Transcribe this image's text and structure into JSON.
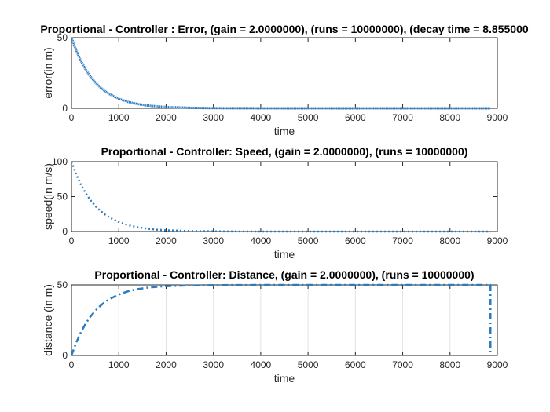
{
  "chart_data": [
    {
      "type": "line",
      "title": "Proportional - Controller : Error, (gain = 2.0000000), (runs = 10000000), (decay time = 8.855000",
      "xlabel": "time",
      "ylabel": "error(in m)",
      "xlim": [
        0,
        9000
      ],
      "ylim": [
        0,
        50
      ],
      "xticks": [
        "0",
        "1000",
        "2000",
        "3000",
        "4000",
        "5000",
        "6000",
        "7000",
        "8000",
        "9000"
      ],
      "yticks": [
        "0",
        "50"
      ],
      "grid": false,
      "line_style": "dotted-dense",
      "color": "#2b7bbf",
      "x": [
        0,
        100,
        200,
        300,
        400,
        500,
        600,
        700,
        800,
        1000,
        1200,
        1400,
        1600,
        1800,
        2000,
        2500,
        3000,
        4000,
        5000,
        6000,
        7000,
        8000,
        8855
      ],
      "y": [
        50,
        40.9,
        33.5,
        27.4,
        22.5,
        18.4,
        15.1,
        12.3,
        10.1,
        6.8,
        4.5,
        3.0,
        2.0,
        1.4,
        0.9,
        0.35,
        0.12,
        0.02,
        0,
        0,
        0,
        0,
        0
      ]
    },
    {
      "type": "line",
      "title": "Proportional - Controller: Speed, (gain = 2.0000000), (runs = 10000000)",
      "xlabel": "time",
      "ylabel": "speed(in m/s)",
      "xlim": [
        0,
        9000
      ],
      "ylim": [
        0,
        100
      ],
      "xticks": [
        "0",
        "1000",
        "2000",
        "3000",
        "4000",
        "5000",
        "6000",
        "7000",
        "8000",
        "9000"
      ],
      "yticks": [
        "0",
        "50",
        "100"
      ],
      "grid": false,
      "line_style": "dotted",
      "color": "#2b7bbf",
      "x": [
        0,
        100,
        200,
        300,
        400,
        500,
        600,
        700,
        800,
        1000,
        1200,
        1400,
        1600,
        1800,
        2000,
        2500,
        3000,
        4000,
        5000,
        6000,
        7000,
        8000,
        8855
      ],
      "y": [
        100,
        81.9,
        67.0,
        54.9,
        44.9,
        36.8,
        30.1,
        24.7,
        20.2,
        13.5,
        9.1,
        6.1,
        4.1,
        2.7,
        1.8,
        0.7,
        0.25,
        0.03,
        0,
        0,
        0,
        0,
        0
      ]
    },
    {
      "type": "line",
      "title": "Proportional - Controller: Distance, (gain = 2.0000000), (runs = 10000000)",
      "xlabel": "time",
      "ylabel": "distance (in m)",
      "xlim": [
        0,
        9000
      ],
      "ylim": [
        0,
        50
      ],
      "xticks": [
        "0",
        "1000",
        "2000",
        "3000",
        "4000",
        "5000",
        "6000",
        "7000",
        "8000",
        "9000"
      ],
      "yticks": [
        "0",
        "50"
      ],
      "grid": true,
      "line_style": "dash-dot",
      "color": "#2b7bbf",
      "x": [
        0,
        100,
        200,
        300,
        400,
        500,
        600,
        700,
        800,
        1000,
        1200,
        1400,
        1600,
        1800,
        2000,
        2500,
        3000,
        4000,
        5000,
        6000,
        7000,
        8000,
        8855,
        8855
      ],
      "y": [
        0,
        9.1,
        16.5,
        22.6,
        27.5,
        31.6,
        34.9,
        37.7,
        39.9,
        43.2,
        45.5,
        47.0,
        48.0,
        48.6,
        49.1,
        49.65,
        49.88,
        49.98,
        50,
        50,
        50,
        50,
        50,
        0
      ]
    }
  ]
}
